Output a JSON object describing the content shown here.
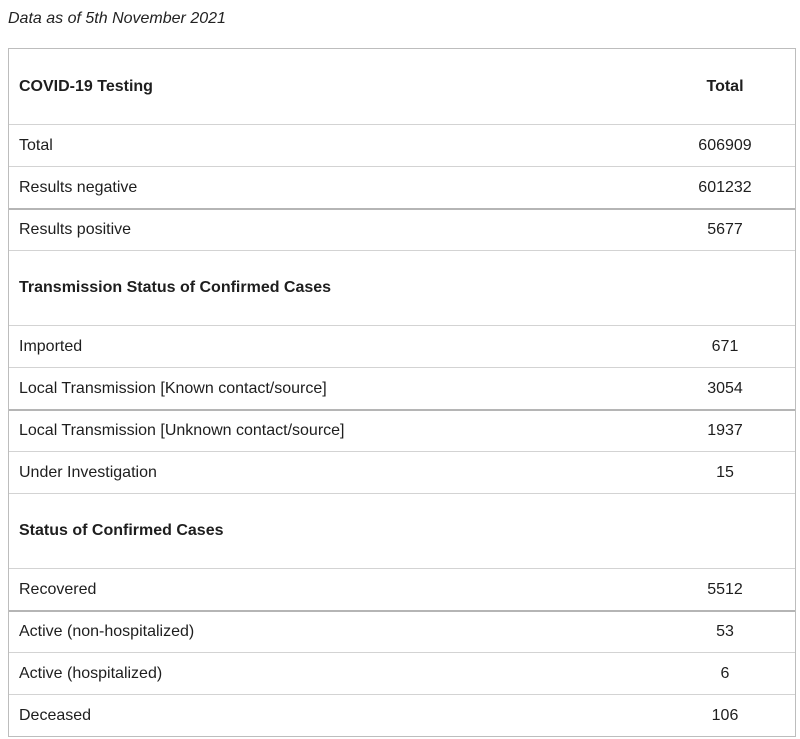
{
  "caption": "Data as of 5th November 2021",
  "header": {
    "label": "COVID-19 Testing",
    "value_header": "Total"
  },
  "testing": [
    {
      "label": "Total",
      "value": "606909"
    },
    {
      "label": "Results negative",
      "value": "601232"
    },
    {
      "label": "Results positive",
      "value": "5677"
    }
  ],
  "transmission": {
    "title": "Transmission Status of Confirmed Cases",
    "rows": [
      {
        "label": "Imported",
        "value": "671"
      },
      {
        "label": "Local Transmission [Known contact/source]",
        "value": "3054"
      },
      {
        "label": "Local Transmission [Unknown contact/source]",
        "value": "1937"
      },
      {
        "label": "Under Investigation",
        "value": "15"
      }
    ]
  },
  "status": {
    "title": "Status of Confirmed Cases",
    "rows": [
      {
        "label": "Recovered",
        "value": "5512"
      },
      {
        "label": "Active (non-hospitalized)",
        "value": "53"
      },
      {
        "label": "Active (hospitalized)",
        "value": "6"
      },
      {
        "label": "Deceased",
        "value": "106"
      }
    ]
  }
}
